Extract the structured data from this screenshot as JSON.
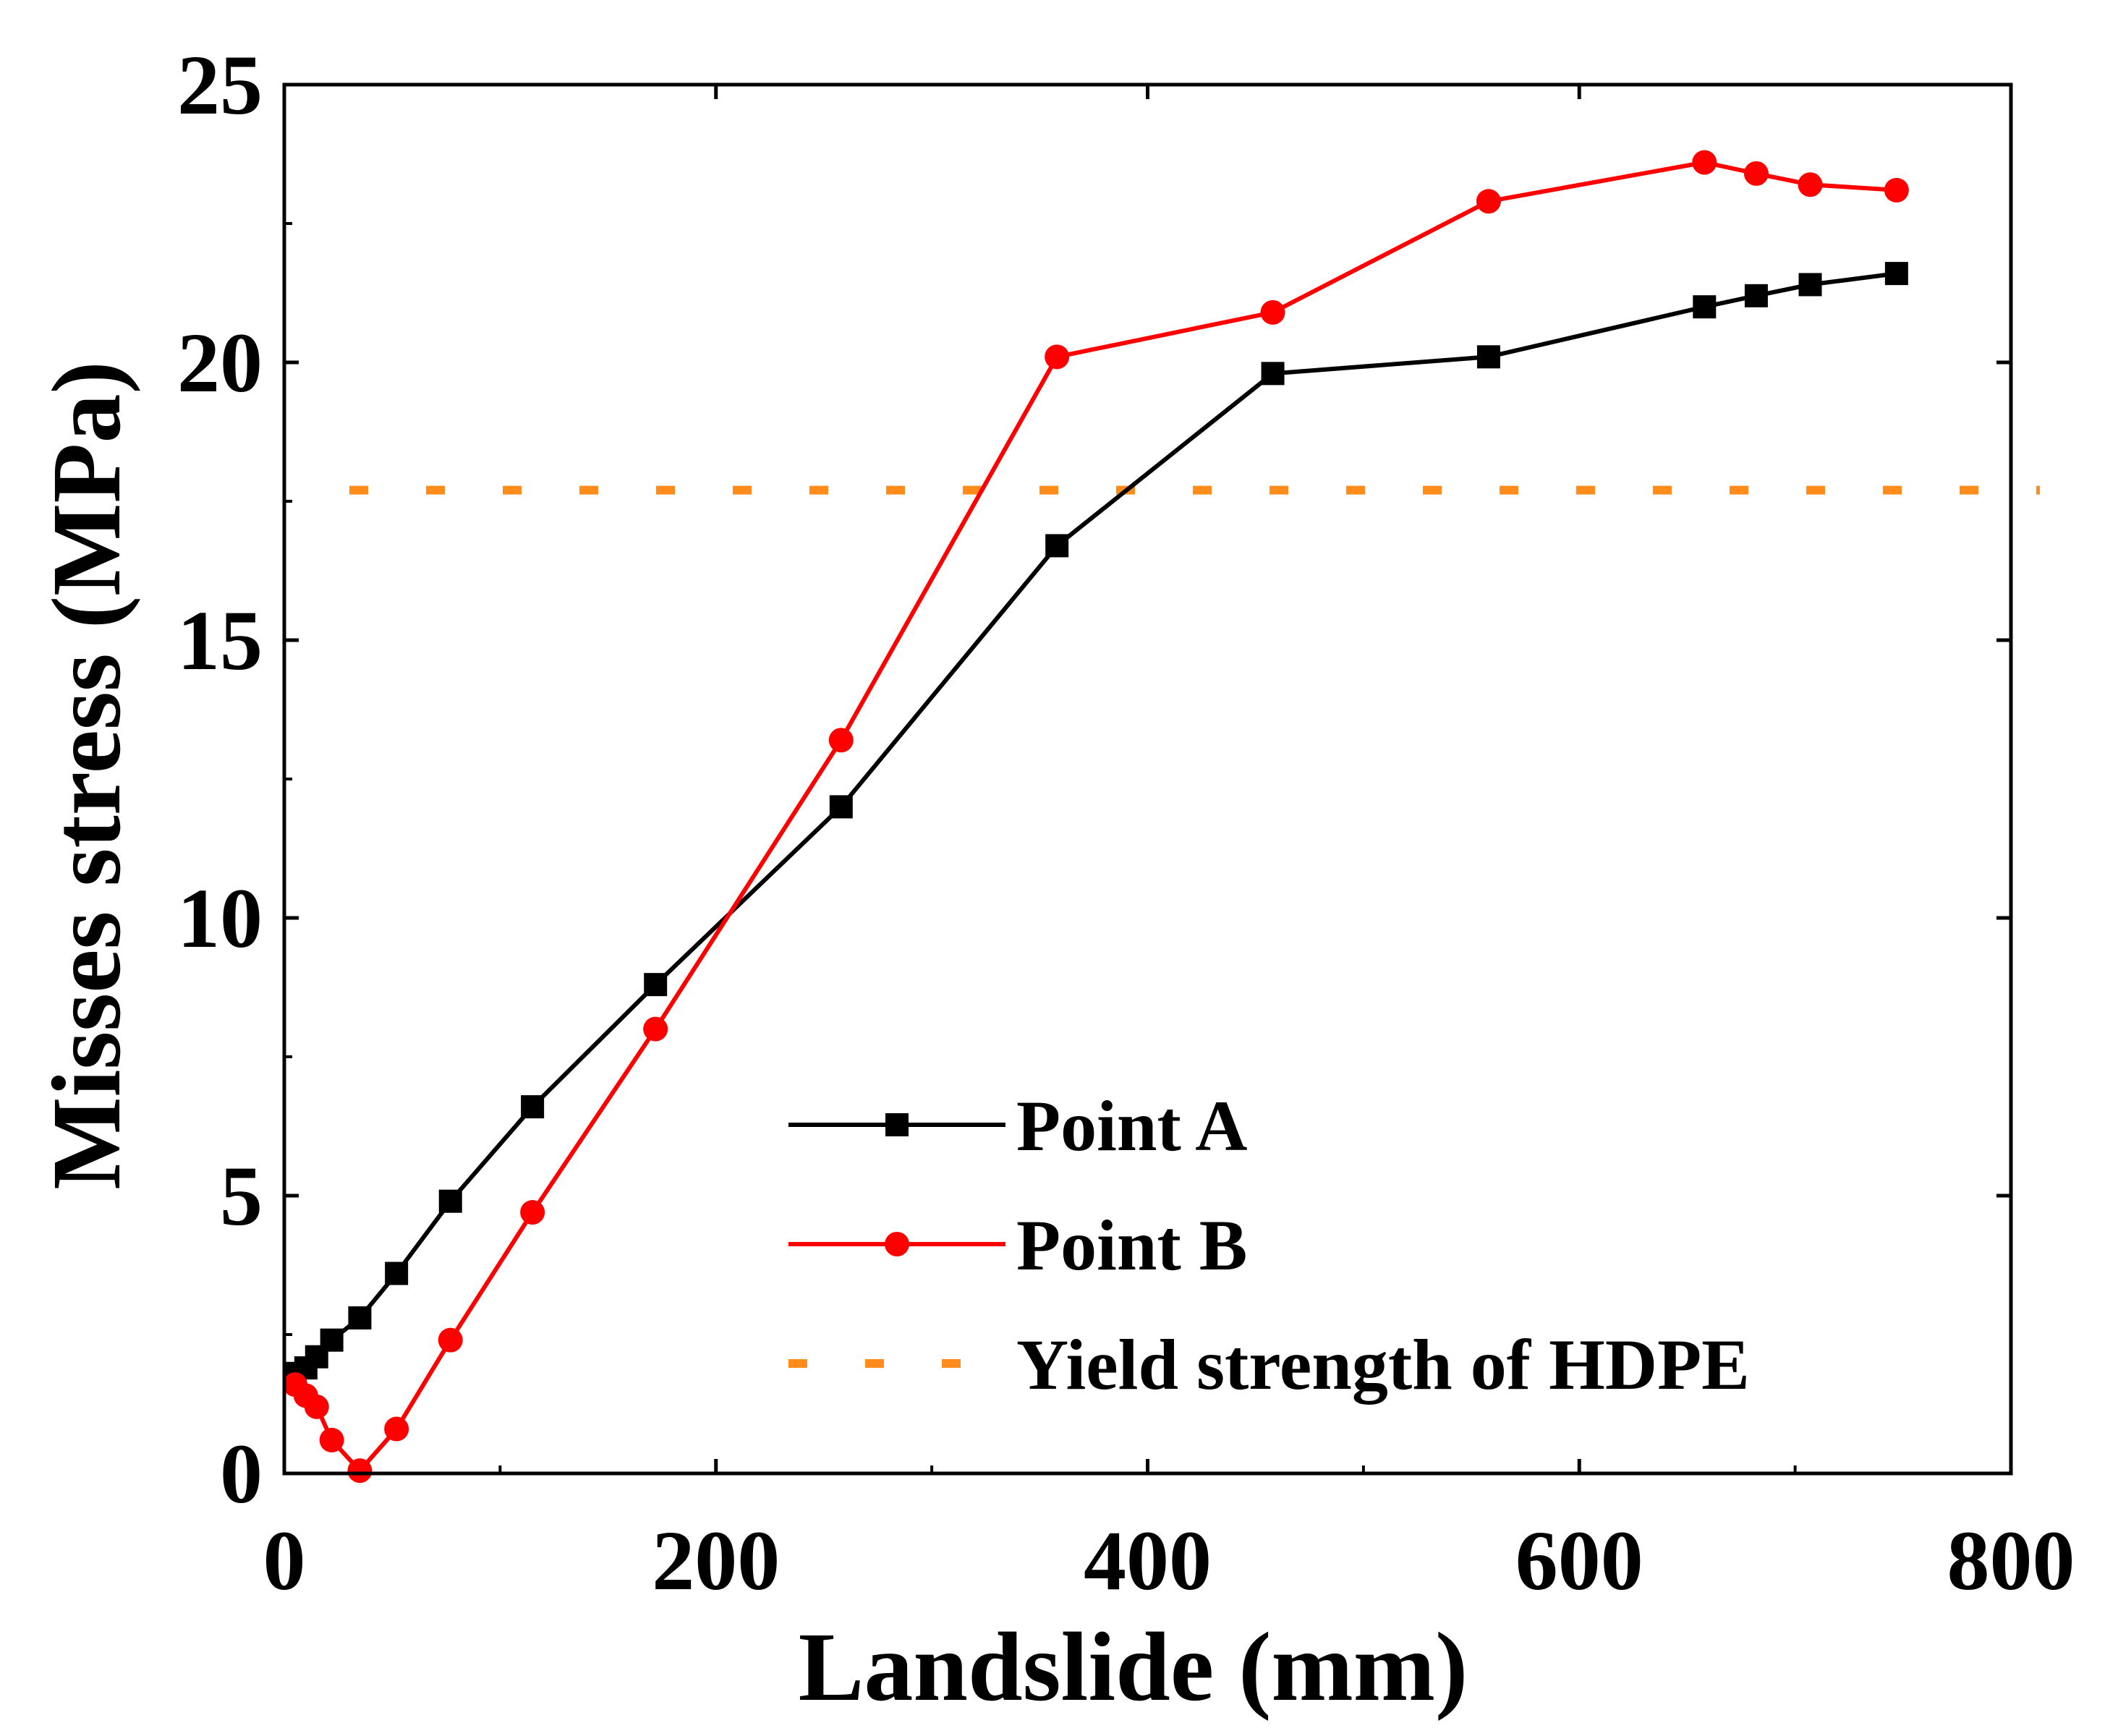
{
  "chart_data": {
    "type": "line",
    "title": "",
    "xlabel": "Landslide (mm)",
    "ylabel": "Misses stress (MPa)",
    "xlim": [
      0,
      800
    ],
    "ylim": [
      0,
      25
    ],
    "xticks": [
      0,
      200,
      400,
      600,
      800
    ],
    "yticks": [
      0,
      5,
      10,
      15,
      20,
      25
    ],
    "xtick_labels": [
      "0",
      "200",
      "400",
      "600",
      "800"
    ],
    "ytick_labels": [
      "0",
      "5",
      "10",
      "15",
      "20",
      "25"
    ],
    "grid": false,
    "legend_position": "bottom-right",
    "series": [
      {
        "name": "Point A",
        "color": "#000000",
        "marker": "square",
        "x": [
          5,
          10,
          15,
          22,
          35,
          52,
          77,
          115,
          172,
          258,
          358,
          458,
          558,
          658,
          682,
          707,
          747
        ],
        "y": [
          1.8,
          1.9,
          2.1,
          2.4,
          2.8,
          3.6,
          4.9,
          6.6,
          8.8,
          12.0,
          16.7,
          19.8,
          20.1,
          21.0,
          21.2,
          21.4,
          21.6
        ]
      },
      {
        "name": "Point B",
        "color": "#ff0000",
        "marker": "circle",
        "x": [
          5,
          10,
          15,
          22,
          35,
          52,
          77,
          115,
          172,
          258,
          358,
          458,
          558,
          658,
          682,
          707,
          747
        ],
        "y": [
          1.6,
          1.4,
          1.2,
          0.6,
          0.05,
          0.8,
          2.4,
          4.7,
          8.0,
          13.2,
          20.1,
          20.9,
          22.9,
          23.6,
          23.4,
          23.2,
          23.1
        ]
      },
      {
        "name": "Yield strength of HDPE",
        "color": "#ff8c1a",
        "style": "dotted",
        "y_constant": 17.7
      }
    ]
  }
}
